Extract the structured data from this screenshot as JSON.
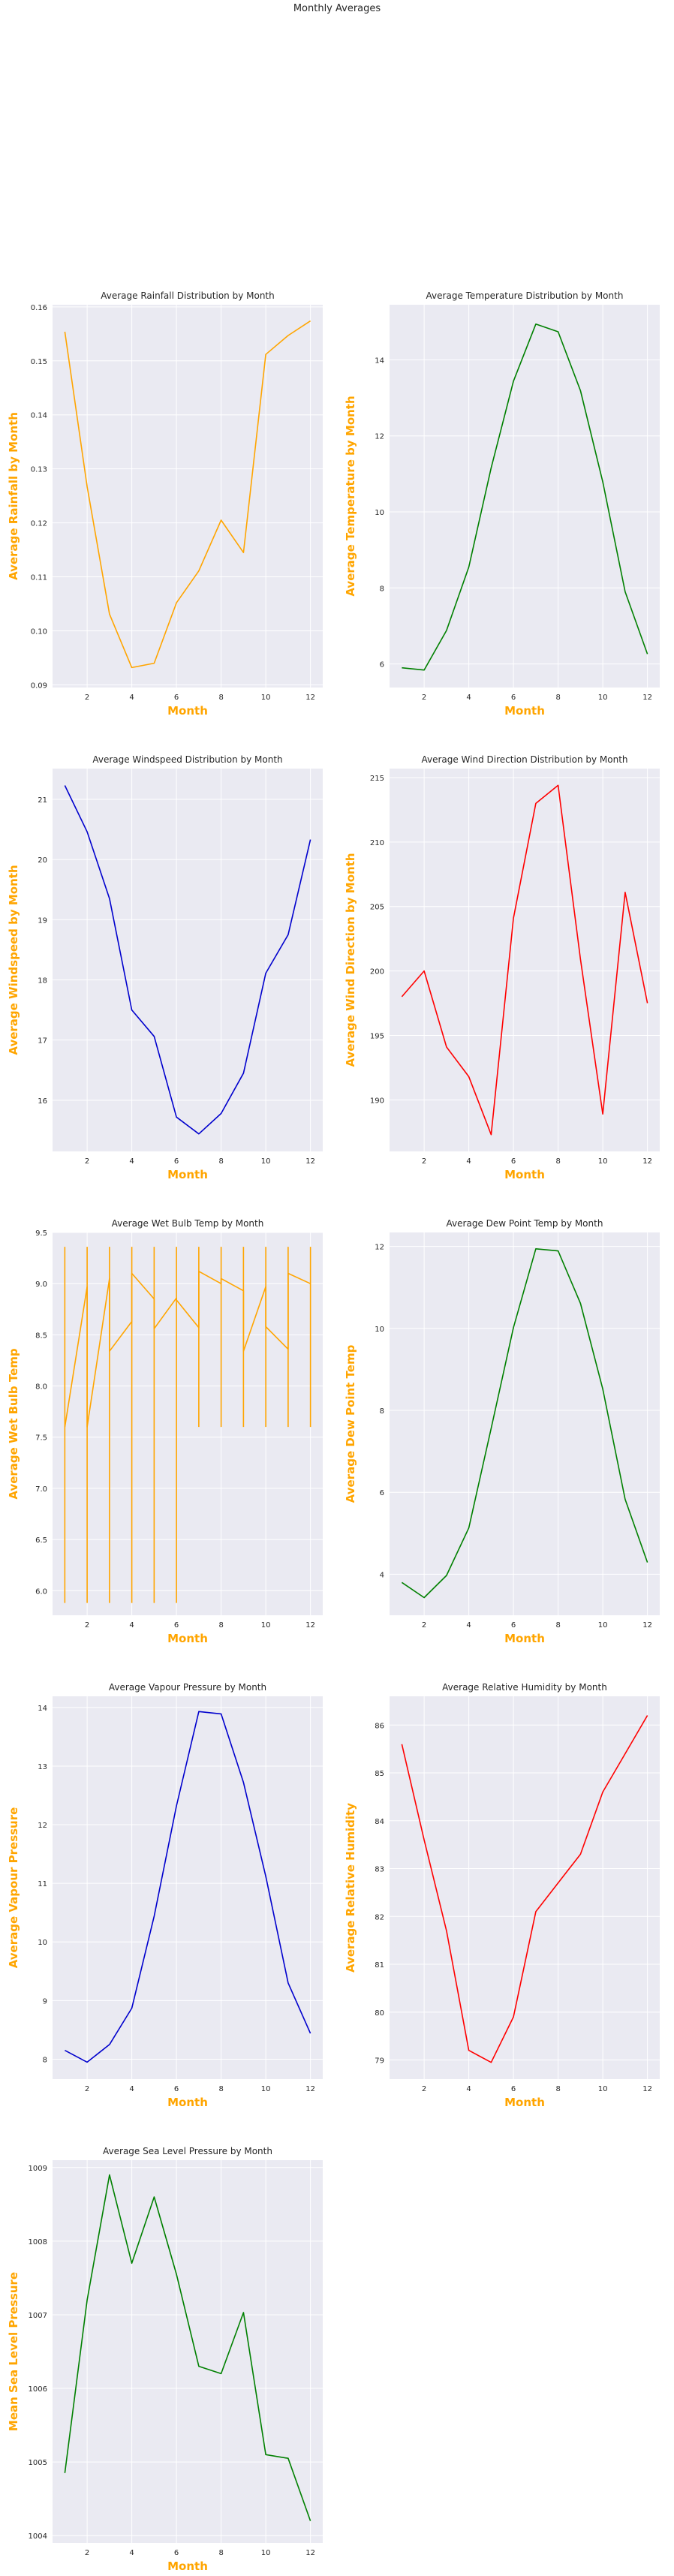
{
  "suptitle": "Monthly Averages",
  "style": {
    "background": "#ffffff",
    "plot_background": "#eaeaf2",
    "grid_color": "#ffffff",
    "text_color": "#262626",
    "label_color": "#ffa500"
  },
  "chart_data": [
    {
      "type": "line",
      "title": "Average Rainfall Distribution by Month",
      "xlabel": "Month",
      "ylabel": "Average Rainfall by Month",
      "color": "#ffa500",
      "xlim": [
        0.45,
        12.55
      ],
      "ylim": [
        0.0895,
        0.1604
      ],
      "xticks": [
        2,
        4,
        6,
        8,
        10,
        12
      ],
      "yticks": [
        0.09,
        0.1,
        0.11,
        0.12,
        0.13,
        0.14,
        0.15,
        0.16
      ],
      "ytick_labels": [
        "0.09",
        "0.10",
        "0.11",
        "0.12",
        "0.13",
        "0.14",
        "0.15",
        "0.16"
      ],
      "grid": true,
      "series": [
        {
          "x": [
            1,
            2,
            3,
            4,
            5,
            6,
            7,
            8,
            9,
            10,
            11,
            12
          ],
          "y": [
            0.1554,
            0.1267,
            0.1031,
            0.0932,
            0.094,
            0.1052,
            0.1111,
            0.1205,
            0.1145,
            0.1512,
            0.1547,
            0.1574
          ]
        }
      ]
    },
    {
      "type": "line",
      "title": "Average Temperature Distribution by Month",
      "xlabel": "Month",
      "ylabel": "Average Temperature by Month",
      "color": "#008000",
      "xlim": [
        0.45,
        12.55
      ],
      "ylim": [
        5.38,
        15.45
      ],
      "xticks": [
        2,
        4,
        6,
        8,
        10,
        12
      ],
      "yticks": [
        6,
        8,
        10,
        12,
        14
      ],
      "ytick_labels": [
        "6",
        "8",
        "10",
        "12",
        "14"
      ],
      "grid": true,
      "series": [
        {
          "x": [
            1,
            2,
            3,
            4,
            5,
            6,
            7,
            8,
            9,
            10,
            11,
            12
          ],
          "y": [
            5.9,
            5.84,
            6.88,
            8.55,
            11.16,
            13.44,
            14.94,
            14.74,
            13.19,
            10.79,
            7.9,
            6.26
          ]
        }
      ]
    },
    {
      "type": "line",
      "title": "Average Windspeed Distribution by Month",
      "xlabel": "Month",
      "ylabel": "Average Windspeed by Month",
      "color": "#0000cd",
      "xlim": [
        0.45,
        12.55
      ],
      "ylim": [
        15.15,
        21.51
      ],
      "xticks": [
        2,
        4,
        6,
        8,
        10,
        12
      ],
      "yticks": [
        16,
        17,
        18,
        19,
        20,
        21
      ],
      "ytick_labels": [
        "16",
        "17",
        "18",
        "19",
        "20",
        "21"
      ],
      "grid": true,
      "series": [
        {
          "x": [
            1,
            2,
            3,
            4,
            5,
            6,
            7,
            8,
            9,
            10,
            11,
            12
          ],
          "y": [
            21.23,
            20.46,
            19.35,
            17.5,
            17.06,
            15.72,
            15.44,
            15.78,
            16.45,
            18.11,
            18.75,
            20.33
          ]
        }
      ]
    },
    {
      "type": "line",
      "title": "Average Wind Direction Distribution by Month",
      "xlabel": "Month",
      "ylabel": "Average Wind Direction by Month",
      "color": "#ff0000",
      "xlim": [
        0.45,
        12.55
      ],
      "ylim": [
        186.0,
        215.7
      ],
      "xticks": [
        2,
        4,
        6,
        8,
        10,
        12
      ],
      "yticks": [
        190,
        195,
        200,
        205,
        210,
        215
      ],
      "ytick_labels": [
        "190",
        "195",
        "200",
        "205",
        "210",
        "215"
      ],
      "grid": true,
      "series": [
        {
          "x": [
            1,
            2,
            3,
            4,
            5,
            6,
            7,
            8,
            9,
            10,
            11,
            12
          ],
          "y": [
            198.0,
            200.0,
            194.1,
            191.8,
            187.3,
            204.1,
            213.0,
            214.4,
            200.9,
            188.9,
            206.1,
            197.5
          ]
        }
      ]
    },
    {
      "type": "line",
      "title": "Average Wet Bulb Temp by Month",
      "xlabel": "Month",
      "ylabel": "Average Wet Bulb Temp",
      "color": "#ffa500",
      "xlim": [
        0.45,
        12.55
      ],
      "ylim": [
        5.76,
        9.5
      ],
      "xticks": [
        2,
        4,
        6,
        8,
        10,
        12
      ],
      "yticks": [
        6.0,
        6.5,
        7.0,
        7.5,
        8.0,
        8.5,
        9.0,
        9.5
      ],
      "ytick_labels": [
        "6.0",
        "6.5",
        "7.0",
        "7.5",
        "8.0",
        "8.5",
        "9.0",
        "9.5"
      ],
      "grid": true,
      "vertical_segments": [
        {
          "x": 1,
          "y": [
            5.88,
            9.36
          ]
        },
        {
          "x": 2,
          "y": [
            5.88,
            9.36
          ]
        },
        {
          "x": 3,
          "y": [
            5.88,
            9.36
          ]
        },
        {
          "x": 4,
          "y": [
            5.88,
            9.36
          ]
        },
        {
          "x": 5,
          "y": [
            5.88,
            9.36
          ]
        },
        {
          "x": 6,
          "y": [
            5.88,
            9.36
          ]
        },
        {
          "x": 7,
          "y": [
            7.6,
            9.36
          ]
        },
        {
          "x": 8,
          "y": [
            7.6,
            9.36
          ]
        },
        {
          "x": 9,
          "y": [
            7.6,
            9.36
          ]
        },
        {
          "x": 10,
          "y": [
            7.6,
            9.36
          ]
        },
        {
          "x": 11,
          "y": [
            7.6,
            9.36
          ]
        },
        {
          "x": 12,
          "y": [
            7.6,
            9.36
          ]
        }
      ],
      "series": [
        {
          "x": [
            1,
            2,
            2,
            3,
            3,
            4,
            4,
            5,
            5,
            6,
            6,
            7,
            7,
            8,
            8,
            9,
            9,
            10,
            10,
            11,
            11,
            12
          ],
          "y": [
            7.6,
            8.97,
            7.6,
            9.05,
            8.34,
            8.63,
            9.1,
            8.85,
            8.56,
            8.86,
            8.84,
            8.57,
            9.12,
            9.0,
            9.05,
            8.93,
            8.34,
            8.97,
            8.58,
            8.36,
            9.1,
            9.0
          ]
        }
      ]
    },
    {
      "type": "line",
      "title": "Average Dew Point Temp by Month",
      "xlabel": "Month",
      "ylabel": "Average Dew Point Temp",
      "color": "#008000",
      "xlim": [
        0.45,
        12.55
      ],
      "ylim": [
        3.0,
        12.34
      ],
      "xticks": [
        2,
        4,
        6,
        8,
        10,
        12
      ],
      "yticks": [
        4,
        6,
        8,
        10,
        12
      ],
      "ytick_labels": [
        "4",
        "6",
        "8",
        "10",
        "12"
      ],
      "grid": true,
      "series": [
        {
          "x": [
            1,
            2,
            3,
            4,
            5,
            6,
            7,
            8,
            9,
            10,
            11,
            12
          ],
          "y": [
            3.8,
            3.43,
            3.97,
            5.13,
            7.56,
            10.02,
            11.94,
            11.89,
            10.61,
            8.52,
            5.83,
            4.29
          ]
        }
      ]
    },
    {
      "type": "line",
      "title": "Average Vapour Pressure by Month",
      "xlabel": "Month",
      "ylabel": "Average Vapour Pressure",
      "color": "#0000cd",
      "xlim": [
        0.45,
        12.55
      ],
      "ylim": [
        7.66,
        14.19
      ],
      "xticks": [
        2,
        4,
        6,
        8,
        10,
        12
      ],
      "yticks": [
        8,
        9,
        10,
        11,
        12,
        13,
        14
      ],
      "ytick_labels": [
        "8",
        "9",
        "10",
        "11",
        "12",
        "13",
        "14"
      ],
      "grid": true,
      "series": [
        {
          "x": [
            1,
            2,
            3,
            4,
            5,
            6,
            7,
            8,
            9,
            10,
            11,
            12
          ],
          "y": [
            8.15,
            7.95,
            8.25,
            8.87,
            10.44,
            12.32,
            13.93,
            13.89,
            12.72,
            11.12,
            9.3,
            8.44
          ]
        }
      ]
    },
    {
      "type": "line",
      "title": "Average Relative Humidity by Month",
      "xlabel": "Month",
      "ylabel": "Average Relative Humidity",
      "color": "#ff0000",
      "xlim": [
        0.45,
        12.55
      ],
      "ylim": [
        78.6,
        86.6
      ],
      "xticks": [
        2,
        4,
        6,
        8,
        10,
        12
      ],
      "yticks": [
        79,
        80,
        81,
        82,
        83,
        84,
        85,
        86
      ],
      "ytick_labels": [
        "79",
        "80",
        "81",
        "82",
        "83",
        "84",
        "85",
        "86"
      ],
      "grid": true,
      "series": [
        {
          "x": [
            1,
            2,
            3,
            4,
            5,
            6,
            7,
            8,
            9,
            10,
            11,
            12
          ],
          "y": [
            85.6,
            83.6,
            81.7,
            79.2,
            78.95,
            79.9,
            82.1,
            82.7,
            83.3,
            84.6,
            85.4,
            86.2
          ]
        }
      ]
    },
    {
      "type": "line",
      "title": "Average Sea Level Pressure by Month",
      "xlabel": "Month",
      "ylabel": "Mean Sea Level Pressure",
      "color": "#008000",
      "xlim": [
        0.45,
        12.55
      ],
      "ylim": [
        1003.9,
        1009.1
      ],
      "xticks": [
        2,
        4,
        6,
        8,
        10,
        12
      ],
      "yticks": [
        1004,
        1005,
        1006,
        1007,
        1008,
        1009
      ],
      "ytick_labels": [
        "1004",
        "1005",
        "1006",
        "1007",
        "1008",
        "1009"
      ],
      "grid": true,
      "series": [
        {
          "x": [
            1,
            2,
            3,
            4,
            5,
            6,
            7,
            8,
            9,
            10,
            11,
            12
          ],
          "y": [
            1004.85,
            1007.2,
            1008.9,
            1007.7,
            1008.6,
            1007.55,
            1006.3,
            1006.2,
            1007.03,
            1005.1,
            1005.05,
            1004.2
          ]
        }
      ]
    }
  ]
}
